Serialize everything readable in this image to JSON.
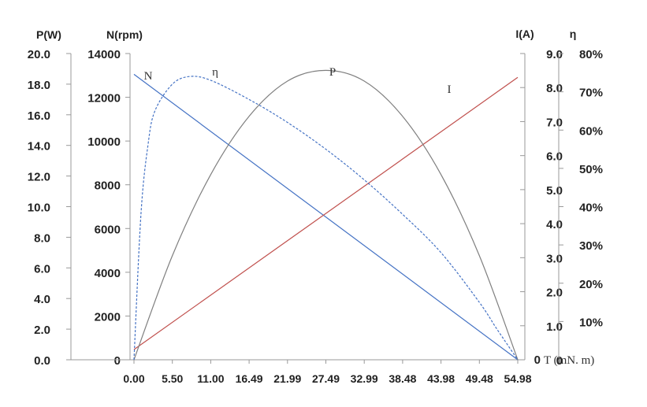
{
  "chart_data": {
    "type": "line",
    "axes": {
      "power": {
        "title": "P(W)",
        "range": [
          0,
          20
        ],
        "ticks": [
          "0.0",
          "2.0",
          "4.0",
          "6.0",
          "8.0",
          "10.0",
          "12.0",
          "14.0",
          "16.0",
          "18.0",
          "20.0"
        ]
      },
      "speed": {
        "title": "N(rpm)",
        "range": [
          0,
          14000
        ],
        "ticks": [
          "0",
          "2000",
          "4000",
          "6000",
          "8000",
          "10000",
          "12000",
          "14000"
        ]
      },
      "current": {
        "title": "I(A)",
        "range": [
          0,
          9
        ],
        "ticks": [
          "0",
          "1.0",
          "2.0",
          "3.0",
          "4.0",
          "5.0",
          "6.0",
          "7.0",
          "8.0",
          "9.0"
        ]
      },
      "efficiency": {
        "title": "η",
        "range": [
          0,
          80
        ],
        "ticks": [
          "10%",
          "20%",
          "30%",
          "40%",
          "50%",
          "60%",
          "70%",
          "80%"
        ]
      },
      "torque": {
        "title": "T (mN. m)",
        "range": [
          0,
          54.98
        ],
        "ticks": [
          "0.00",
          "5.50",
          "11.00",
          "16.49",
          "21.99",
          "27.49",
          "32.99",
          "38.48",
          "43.98",
          "49.48",
          "54.98"
        ]
      }
    },
    "series": [
      {
        "name": "N",
        "axis": "speed",
        "color": "#4472c4",
        "style": "solid",
        "x": [
          0,
          54.98
        ],
        "y": [
          13050,
          0
        ]
      },
      {
        "name": "I",
        "axis": "current",
        "color": "#c0504d",
        "style": "solid",
        "x": [
          0,
          54.98
        ],
        "y": [
          0.3,
          8.3
        ]
      },
      {
        "name": "P",
        "axis": "power",
        "color": "#7f7f7f",
        "style": "solid",
        "x": [
          0,
          5.5,
          11.0,
          16.49,
          21.99,
          27.49,
          32.99,
          38.48,
          43.98,
          49.48,
          54.98
        ],
        "y": [
          0,
          6.8,
          12.1,
          15.9,
          18.2,
          18.9,
          18.2,
          15.9,
          12.1,
          6.8,
          0
        ]
      },
      {
        "name": "η",
        "axis": "efficiency",
        "color": "#4472c4",
        "style": "dashed",
        "x": [
          0,
          1,
          2,
          3,
          5.5,
          8,
          11.0,
          16.49,
          21.99,
          27.49,
          32.99,
          38.48,
          43.98,
          49.48,
          52,
          54.98
        ],
        "y": [
          0,
          38,
          56,
          65,
          72,
          74,
          73,
          68,
          62,
          55,
          47,
          38,
          28,
          15,
          8,
          0
        ]
      }
    ],
    "grid": false,
    "legend": "none"
  }
}
